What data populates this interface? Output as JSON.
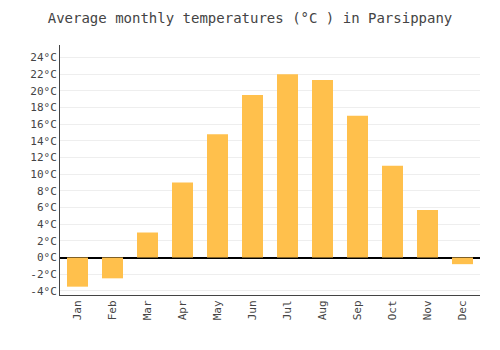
{
  "chart_data": {
    "type": "bar",
    "title": "Average monthly temperatures (°C ) in Parsippany",
    "categories": [
      "Jan",
      "Feb",
      "Mar",
      "Apr",
      "May",
      "Jun",
      "Jul",
      "Aug",
      "Sep",
      "Oct",
      "Nov",
      "Dec"
    ],
    "values": [
      -3.5,
      -2.5,
      3.0,
      9.0,
      14.8,
      19.5,
      22.0,
      21.3,
      17.0,
      11.0,
      5.7,
      -0.8
    ],
    "color": "#FFC04C",
    "ylim": [
      -4.5,
      25.5
    ],
    "yticks": [
      {
        "value": -4,
        "label": "-4°C"
      },
      {
        "value": -2,
        "label": "-2°C"
      },
      {
        "value": 0,
        "label": "0°C"
      },
      {
        "value": 2,
        "label": "2°C"
      },
      {
        "value": 4,
        "label": "4°C"
      },
      {
        "value": 6,
        "label": "6°C"
      },
      {
        "value": 8,
        "label": "8°C"
      },
      {
        "value": 10,
        "label": "10°C"
      },
      {
        "value": 12,
        "label": "12°C"
      },
      {
        "value": 14,
        "label": "14°C"
      },
      {
        "value": 16,
        "label": "16°C"
      },
      {
        "value": 18,
        "label": "18°C"
      },
      {
        "value": 20,
        "label": "20°C"
      },
      {
        "value": 22,
        "label": "22°C"
      },
      {
        "value": 24,
        "label": "24°C"
      }
    ],
    "grid": true
  }
}
